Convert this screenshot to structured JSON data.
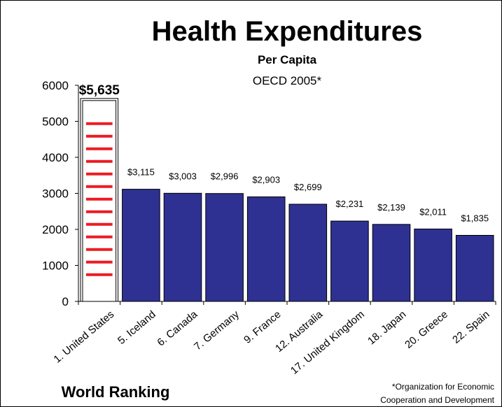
{
  "chart_data": {
    "type": "bar",
    "title": "Health Expenditures",
    "subtitle": "Per Capita",
    "source_line": "OECD 2005*",
    "x_group_label": "World Ranking",
    "footnote_line1": "*Organization for Economic",
    "footnote_line2": "Cooperation and Development",
    "ylim": [
      0,
      6000
    ],
    "y_ticks": [
      "0",
      "1000",
      "2000",
      "3000",
      "4000",
      "5000",
      "6000"
    ],
    "categories": [
      "1. United States",
      "5. Iceland",
      "6. Canada",
      "7. Germany",
      "9. France",
      "12. Australia",
      "17. United Kingdom",
      "18. Japan",
      "20. Greece",
      "22. Spain"
    ],
    "values": [
      5635,
      3115,
      3003,
      2996,
      2903,
      2699,
      2231,
      2139,
      2011,
      1835
    ],
    "value_labels": [
      "$5,635",
      "$3,115",
      "$3,003",
      "$2,996",
      "$2,903",
      "$2,699",
      "$2,231",
      "$2,139",
      "$2,011",
      "$1,835"
    ],
    "highlight_index": 0,
    "colors": {
      "bar": "#2e3192",
      "highlight_stripe": "#ed1c24",
      "highlight_fill": "#ffffff"
    },
    "grid": false,
    "legend": "none"
  }
}
